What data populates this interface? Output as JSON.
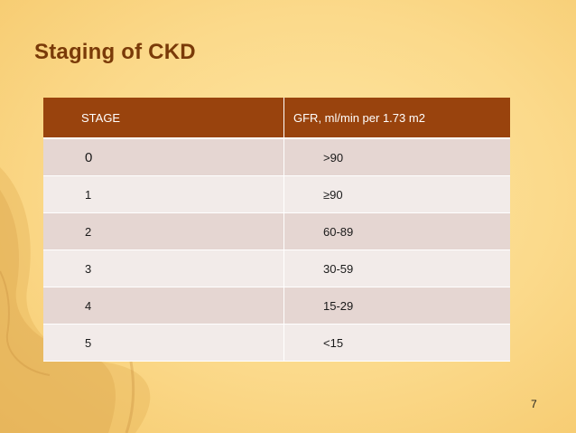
{
  "slide": {
    "title": "Staging of CKD",
    "page_number": "7"
  },
  "colors": {
    "header_bg": "#99430d",
    "row_dark": "#e5d6d2",
    "row_light": "#f2ebe9",
    "title": "#7a3a08"
  },
  "table": {
    "headers": {
      "stage": "STAGE",
      "gfr": "GFR, ml/min per 1.73 m2"
    },
    "rows": [
      {
        "stage": "0",
        "gfr": ">90"
      },
      {
        "stage": "1",
        "gfr": "≥90"
      },
      {
        "stage": "2",
        "gfr": "60-89"
      },
      {
        "stage": "3",
        "gfr": "30-59"
      },
      {
        "stage": "4",
        "gfr": " 15-29"
      },
      {
        "stage": "5",
        "gfr": " <15"
      }
    ]
  }
}
